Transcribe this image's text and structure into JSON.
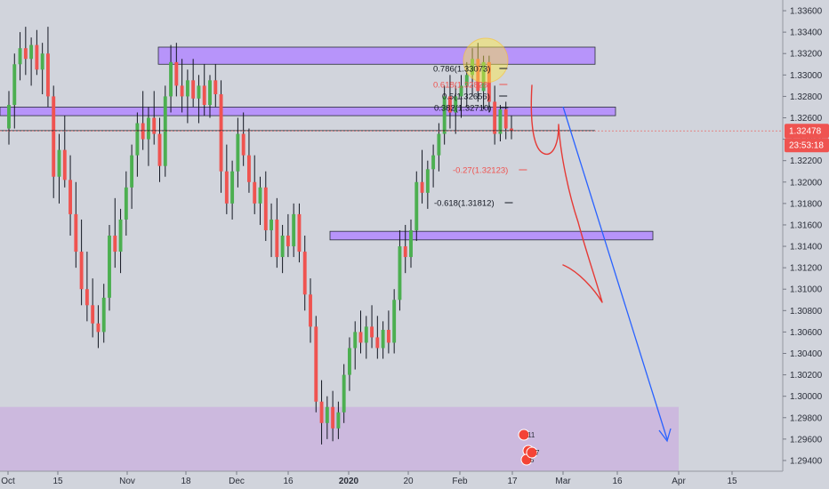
{
  "chart_data": {
    "type": "candlestick",
    "colors": {
      "background": "#d1d4dc",
      "up": "#4caf50",
      "down": "#ef5350",
      "wick": "#131722",
      "zone_fill": "#b388ff",
      "zone_stroke": "#2a2e39",
      "bottom_zone_fill": "#c8a2e0",
      "price_line": "#ef5350",
      "last_price_badge": "#ef5350",
      "fib_level": "#131722",
      "fib_red": "#ef5350",
      "projection_blue": "#2962ff",
      "projection_red": "#e53935",
      "highlight_circle": "#ffeb3b"
    },
    "y_axis": {
      "ylim": [
        1.293,
        1.337
      ],
      "ticks": [
        "1.33600",
        "1.33400",
        "1.33200",
        "1.33000",
        "1.32800",
        "1.32600",
        "1.32400",
        "1.32200",
        "1.32000",
        "1.31800",
        "1.31600",
        "1.31400",
        "1.31200",
        "1.31000",
        "1.30800",
        "1.30600",
        "1.30400",
        "1.30200",
        "1.30000",
        "1.29800",
        "1.29600",
        "1.29400"
      ],
      "tick_values": [
        1.336,
        1.334,
        1.332,
        1.33,
        1.328,
        1.326,
        1.324,
        1.322,
        1.32,
        1.318,
        1.316,
        1.314,
        1.312,
        1.31,
        1.308,
        1.306,
        1.304,
        1.302,
        1.3,
        1.298,
        1.296,
        1.294
      ]
    },
    "x_axis": {
      "labels": [
        "Oct",
        "15",
        "Nov",
        "18",
        "Dec",
        "16",
        "2020",
        "20",
        "Feb",
        "17",
        "Mar",
        "16",
        "Apr",
        "15"
      ],
      "bold": [
        "2020"
      ]
    },
    "last_price": "1.32478",
    "countdown": "23:53:18",
    "fib_labels": [
      {
        "text": "0.786(1.33073)",
        "price": 1.33073,
        "color": "fib_level"
      },
      {
        "text": "0.618(1.32828)",
        "price": 1.32828,
        "color": "fib_red"
      },
      {
        "text": "0.5(1.32656)",
        "price": 1.32656,
        "color": "fib_level"
      },
      {
        "text": "0.382(1.32710)",
        "price": 1.3271,
        "color": "fib_level"
      },
      {
        "text": "-0.27(1.32123)",
        "price": 1.32123,
        "color": "fib_red"
      },
      {
        "text": "-0.618(1.31812)",
        "price": 1.31812,
        "color": "fib_level"
      }
    ],
    "zones": [
      {
        "name": "resistance-zone-top",
        "top": 1.3326,
        "bottom": 1.331
      },
      {
        "name": "resistance-zone-mid",
        "top": 1.327,
        "bottom": 1.3262
      },
      {
        "name": "support-zone-mid",
        "top": 1.3154,
        "bottom": 1.3146
      },
      {
        "name": "support-zone-bottom",
        "top": 1.299,
        "bottom": 1.293
      }
    ],
    "event_badges": [
      "11",
      "7",
      "5",
      "7"
    ],
    "candles": [
      {
        "o": 1.325,
        "h": 1.3285,
        "l": 1.3235,
        "c": 1.3272
      },
      {
        "o": 1.3272,
        "h": 1.332,
        "l": 1.325,
        "c": 1.331
      },
      {
        "o": 1.331,
        "h": 1.334,
        "l": 1.3295,
        "c": 1.3325
      },
      {
        "o": 1.3325,
        "h": 1.3345,
        "l": 1.33,
        "c": 1.3315
      },
      {
        "o": 1.3315,
        "h": 1.3335,
        "l": 1.329,
        "c": 1.3328
      },
      {
        "o": 1.3328,
        "h": 1.3342,
        "l": 1.33,
        "c": 1.3305
      },
      {
        "o": 1.3305,
        "h": 1.333,
        "l": 1.3282,
        "c": 1.332
      },
      {
        "o": 1.332,
        "h": 1.3345,
        "l": 1.327,
        "c": 1.328
      },
      {
        "o": 1.328,
        "h": 1.329,
        "l": 1.3185,
        "c": 1.3205
      },
      {
        "o": 1.3205,
        "h": 1.3245,
        "l": 1.318,
        "c": 1.323
      },
      {
        "o": 1.323,
        "h": 1.3262,
        "l": 1.3195,
        "c": 1.3202
      },
      {
        "o": 1.3202,
        "h": 1.3225,
        "l": 1.315,
        "c": 1.317
      },
      {
        "o": 1.317,
        "h": 1.32,
        "l": 1.312,
        "c": 1.3135
      },
      {
        "o": 1.3135,
        "h": 1.3165,
        "l": 1.3085,
        "c": 1.31
      },
      {
        "o": 1.31,
        "h": 1.3135,
        "l": 1.307,
        "c": 1.3085
      },
      {
        "o": 1.3085,
        "h": 1.311,
        "l": 1.3055,
        "c": 1.3068
      },
      {
        "o": 1.3068,
        "h": 1.3085,
        "l": 1.3045,
        "c": 1.306
      },
      {
        "o": 1.306,
        "h": 1.3105,
        "l": 1.305,
        "c": 1.3092
      },
      {
        "o": 1.3092,
        "h": 1.316,
        "l": 1.308,
        "c": 1.315
      },
      {
        "o": 1.315,
        "h": 1.3185,
        "l": 1.312,
        "c": 1.3135
      },
      {
        "o": 1.3135,
        "h": 1.3175,
        "l": 1.3115,
        "c": 1.3165
      },
      {
        "o": 1.3165,
        "h": 1.321,
        "l": 1.315,
        "c": 1.3195
      },
      {
        "o": 1.3195,
        "h": 1.3235,
        "l": 1.3175,
        "c": 1.3225
      },
      {
        "o": 1.3225,
        "h": 1.3265,
        "l": 1.3205,
        "c": 1.3255
      },
      {
        "o": 1.3255,
        "h": 1.3285,
        "l": 1.323,
        "c": 1.324
      },
      {
        "o": 1.324,
        "h": 1.327,
        "l": 1.3215,
        "c": 1.326
      },
      {
        "o": 1.326,
        "h": 1.3285,
        "l": 1.3235,
        "c": 1.3245
      },
      {
        "o": 1.3245,
        "h": 1.326,
        "l": 1.32,
        "c": 1.3215
      },
      {
        "o": 1.3215,
        "h": 1.329,
        "l": 1.3205,
        "c": 1.328
      },
      {
        "o": 1.328,
        "h": 1.3328,
        "l": 1.3265,
        "c": 1.3312
      },
      {
        "o": 1.3312,
        "h": 1.333,
        "l": 1.328,
        "c": 1.329
      },
      {
        "o": 1.329,
        "h": 1.3315,
        "l": 1.3265,
        "c": 1.328
      },
      {
        "o": 1.328,
        "h": 1.3305,
        "l": 1.3255,
        "c": 1.3295
      },
      {
        "o": 1.3295,
        "h": 1.3315,
        "l": 1.327,
        "c": 1.3278
      },
      {
        "o": 1.3278,
        "h": 1.33,
        "l": 1.3255,
        "c": 1.329
      },
      {
        "o": 1.329,
        "h": 1.331,
        "l": 1.3262,
        "c": 1.3272
      },
      {
        "o": 1.3272,
        "h": 1.33,
        "l": 1.326,
        "c": 1.3295
      },
      {
        "o": 1.3295,
        "h": 1.331,
        "l": 1.327,
        "c": 1.3282
      },
      {
        "o": 1.3282,
        "h": 1.3295,
        "l": 1.319,
        "c": 1.321
      },
      {
        "o": 1.321,
        "h": 1.3235,
        "l": 1.317,
        "c": 1.318
      },
      {
        "o": 1.318,
        "h": 1.322,
        "l": 1.3165,
        "c": 1.321
      },
      {
        "o": 1.321,
        "h": 1.326,
        "l": 1.3195,
        "c": 1.3245
      },
      {
        "o": 1.3245,
        "h": 1.3265,
        "l": 1.3215,
        "c": 1.3225
      },
      {
        "o": 1.3225,
        "h": 1.325,
        "l": 1.319,
        "c": 1.32
      },
      {
        "o": 1.32,
        "h": 1.3225,
        "l": 1.317,
        "c": 1.318
      },
      {
        "o": 1.318,
        "h": 1.3205,
        "l": 1.316,
        "c": 1.3195
      },
      {
        "o": 1.3195,
        "h": 1.321,
        "l": 1.3145,
        "c": 1.3155
      },
      {
        "o": 1.3155,
        "h": 1.318,
        "l": 1.313,
        "c": 1.3165
      },
      {
        "o": 1.3165,
        "h": 1.3185,
        "l": 1.312,
        "c": 1.313
      },
      {
        "o": 1.313,
        "h": 1.316,
        "l": 1.3115,
        "c": 1.315
      },
      {
        "o": 1.315,
        "h": 1.317,
        "l": 1.313,
        "c": 1.314
      },
      {
        "o": 1.314,
        "h": 1.318,
        "l": 1.313,
        "c": 1.317
      },
      {
        "o": 1.317,
        "h": 1.318,
        "l": 1.3125,
        "c": 1.3135
      },
      {
        "o": 1.3135,
        "h": 1.315,
        "l": 1.308,
        "c": 1.3095
      },
      {
        "o": 1.3095,
        "h": 1.311,
        "l": 1.305,
        "c": 1.3065
      },
      {
        "o": 1.3065,
        "h": 1.3075,
        "l": 1.2985,
        "c": 1.2995
      },
      {
        "o": 1.2995,
        "h": 1.3015,
        "l": 1.2955,
        "c": 1.2975
      },
      {
        "o": 1.2975,
        "h": 1.3,
        "l": 1.296,
        "c": 1.299
      },
      {
        "o": 1.299,
        "h": 1.3005,
        "l": 1.2958,
        "c": 1.297
      },
      {
        "o": 1.297,
        "h": 1.2995,
        "l": 1.296,
        "c": 1.2985
      },
      {
        "o": 1.2985,
        "h": 1.303,
        "l": 1.2975,
        "c": 1.302
      },
      {
        "o": 1.302,
        "h": 1.3055,
        "l": 1.3005,
        "c": 1.3045
      },
      {
        "o": 1.3045,
        "h": 1.307,
        "l": 1.3025,
        "c": 1.306
      },
      {
        "o": 1.306,
        "h": 1.308,
        "l": 1.304,
        "c": 1.305
      },
      {
        "o": 1.305,
        "h": 1.3075,
        "l": 1.3035,
        "c": 1.3065
      },
      {
        "o": 1.3065,
        "h": 1.3085,
        "l": 1.3045,
        "c": 1.3055
      },
      {
        "o": 1.3055,
        "h": 1.3075,
        "l": 1.3035,
        "c": 1.3045
      },
      {
        "o": 1.3045,
        "h": 1.307,
        "l": 1.3035,
        "c": 1.3062
      },
      {
        "o": 1.3062,
        "h": 1.308,
        "l": 1.304,
        "c": 1.305
      },
      {
        "o": 1.305,
        "h": 1.31,
        "l": 1.304,
        "c": 1.309
      },
      {
        "o": 1.309,
        "h": 1.3155,
        "l": 1.308,
        "c": 1.314
      },
      {
        "o": 1.314,
        "h": 1.316,
        "l": 1.3115,
        "c": 1.313
      },
      {
        "o": 1.313,
        "h": 1.3165,
        "l": 1.312,
        "c": 1.3155
      },
      {
        "o": 1.3155,
        "h": 1.321,
        "l": 1.3145,
        "c": 1.32
      },
      {
        "o": 1.32,
        "h": 1.323,
        "l": 1.318,
        "c": 1.319
      },
      {
        "o": 1.319,
        "h": 1.322,
        "l": 1.3175,
        "c": 1.3212
      },
      {
        "o": 1.3212,
        "h": 1.3235,
        "l": 1.3195,
        "c": 1.3225
      },
      {
        "o": 1.3225,
        "h": 1.3255,
        "l": 1.321,
        "c": 1.3245
      },
      {
        "o": 1.3245,
        "h": 1.329,
        "l": 1.3235,
        "c": 1.328
      },
      {
        "o": 1.328,
        "h": 1.33,
        "l": 1.325,
        "c": 1.3265
      },
      {
        "o": 1.3265,
        "h": 1.329,
        "l": 1.3245,
        "c": 1.328
      },
      {
        "o": 1.328,
        "h": 1.33,
        "l": 1.326,
        "c": 1.329
      },
      {
        "o": 1.329,
        "h": 1.3312,
        "l": 1.327,
        "c": 1.33
      },
      {
        "o": 1.33,
        "h": 1.3325,
        "l": 1.328,
        "c": 1.3315
      },
      {
        "o": 1.3315,
        "h": 1.333,
        "l": 1.3275,
        "c": 1.3285
      },
      {
        "o": 1.3285,
        "h": 1.3318,
        "l": 1.3268,
        "c": 1.3312
      },
      {
        "o": 1.3312,
        "h": 1.3318,
        "l": 1.3265,
        "c": 1.3275
      },
      {
        "o": 1.3275,
        "h": 1.329,
        "l": 1.3235,
        "c": 1.3245
      },
      {
        "o": 1.3245,
        "h": 1.3272,
        "l": 1.3238,
        "c": 1.3268
      },
      {
        "o": 1.3268,
        "h": 1.3275,
        "l": 1.324,
        "c": 1.325
      },
      {
        "o": 1.325,
        "h": 1.3262,
        "l": 1.324,
        "c": 1.3248
      }
    ]
  }
}
